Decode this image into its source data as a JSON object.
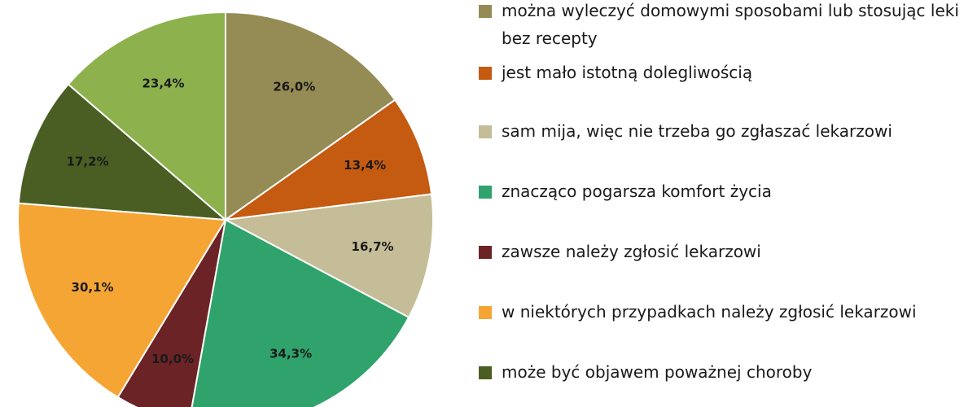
{
  "chart_data": {
    "type": "pie",
    "title": "",
    "slices": [
      {
        "label": "można wyleczyć domowymi sposobami lub stosując leki bez recepty",
        "value": 26.0,
        "value_label": "26,0%",
        "color": "#958b55"
      },
      {
        "label": "jest mało istotną dolegliwością",
        "value": 13.4,
        "value_label": "13,4%",
        "color": "#c55a11"
      },
      {
        "label": "sam mija, więc nie trzeba go zgłaszać lekarzowi",
        "value": 16.7,
        "value_label": "16,7%",
        "color": "#c4bd97"
      },
      {
        "label": "znacząco pogarsza komfort życia",
        "value": 34.3,
        "value_label": "34,3%",
        "color": "#2fa36b"
      },
      {
        "label": "zawsze należy zgłosić lekarzowi",
        "value": 10.0,
        "value_label": "10,0%",
        "color": "#6b2326"
      },
      {
        "label": "w niektórych przypadkach należy zgłosić lekarzowi",
        "value": 30.1,
        "value_label": "30,1%",
        "color": "#f5a534"
      },
      {
        "label": "może być objawem poważnej choroby",
        "value": 17.2,
        "value_label": "17,2%",
        "color": "#4a5e23"
      },
      {
        "label": "",
        "value": 23.4,
        "value_label": "23,4%",
        "color": "#8db14d"
      }
    ],
    "legend_position": "right"
  }
}
